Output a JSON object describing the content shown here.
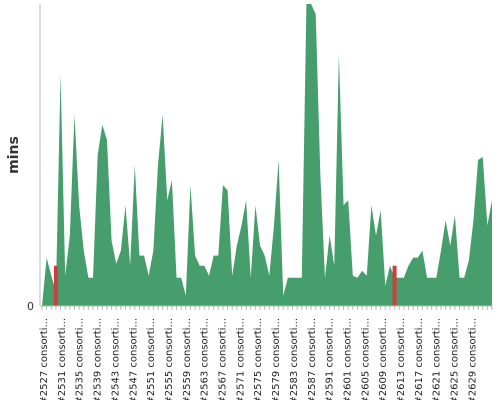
{
  "chart_data": {
    "type": "area",
    "ylabel": "mins",
    "xlabel": "",
    "y_ticks": [
      "0"
    ],
    "y_max": 300,
    "grid": false,
    "colors": {
      "area": "#459e6c",
      "failed": "#d23c3c",
      "axis": "#bbbbbb"
    },
    "failed_runs": [
      "#2529 consorti...",
      "#2593 consorti..."
    ],
    "tick_labels": [
      "#2527 consorti...",
      "#2531 consorti...",
      "#2535 consorti...",
      "#2539 consorti...",
      "#2543 consorti...",
      "#2547 consorti...",
      "#2551 consorti...",
      "#2555 consorti...",
      "#2559 consorti...",
      "#2563 consorti...",
      "#2567 consorti...",
      "#2571 consorti...",
      "#2575 consorti...",
      "#2579 consorti...",
      "#2583 consorti...",
      "#2587 consorti...",
      "#2591 consorti...",
      "#2601 consorti...",
      "#2605 consorti...",
      "#2609 consorti...",
      "#2613 consorti...",
      "#2617 consorti...",
      "#2621 consorti...",
      "#2625 consorti...",
      "#2629 consorti..."
    ],
    "values": [
      0,
      48,
      30,
      14,
      230,
      30,
      70,
      190,
      100,
      55,
      28,
      28,
      150,
      180,
      165,
      65,
      42,
      55,
      100,
      40,
      140,
      50,
      50,
      30,
      55,
      140,
      190,
      105,
      125,
      28,
      28,
      10,
      120,
      50,
      40,
      40,
      30,
      50,
      50,
      120,
      115,
      30,
      60,
      80,
      105,
      28,
      100,
      60,
      50,
      30,
      80,
      145,
      10,
      28,
      28,
      28,
      28,
      300,
      300,
      290,
      130,
      28,
      70,
      40,
      250,
      100,
      105,
      30,
      28,
      35,
      30,
      100,
      70,
      95,
      20,
      40,
      28,
      28,
      28,
      40,
      48,
      48,
      55,
      28,
      28,
      28,
      55,
      85,
      60,
      90,
      28,
      28,
      45,
      85,
      145,
      148,
      80,
      105
    ]
  }
}
